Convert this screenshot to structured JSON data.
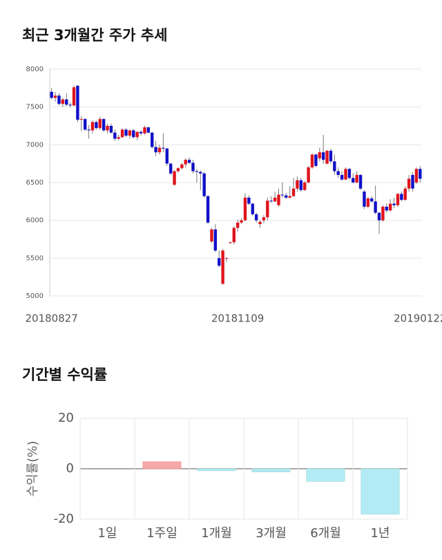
{
  "chart_data": [
    {
      "type": "candlestick",
      "title": "최근 3개월간 주가 추세",
      "up_color": "#e0141c",
      "down_color": "#1010c8",
      "ylim": [
        5000,
        8000
      ],
      "yticks": [
        5000,
        5500,
        6000,
        6500,
        7000,
        7500,
        8000
      ],
      "grid": true,
      "categories": [
        "20180827",
        null,
        null,
        null,
        null,
        null,
        null,
        null,
        null,
        null,
        null,
        null,
        null,
        null,
        null,
        null,
        null,
        null,
        null,
        null,
        null,
        null,
        null,
        null,
        null,
        null,
        null,
        null,
        null,
        null,
        null,
        null,
        null,
        null,
        null,
        null,
        null,
        null,
        null,
        null,
        null,
        null,
        null,
        null,
        null,
        null,
        null,
        null,
        null,
        null,
        "20181109",
        null,
        null,
        null,
        null,
        null,
        null,
        null,
        null,
        null,
        null,
        null,
        null,
        null,
        null,
        null,
        null,
        null,
        null,
        null,
        null,
        null,
        null,
        null,
        null,
        null,
        null,
        null,
        null,
        null,
        null,
        null,
        null,
        null,
        null,
        null,
        null,
        null,
        null,
        null,
        null,
        null,
        null,
        null,
        null,
        null,
        null,
        null,
        null,
        "20190122"
      ],
      "ohlc": [
        [
          7700,
          7750,
          7600,
          7620
        ],
        [
          7620,
          7700,
          7570,
          7650
        ],
        [
          7650,
          7680,
          7520,
          7540
        ],
        [
          7540,
          7620,
          7500,
          7600
        ],
        [
          7600,
          7680,
          7510,
          7530
        ],
        [
          7530,
          7560,
          7490,
          7520
        ],
        [
          7520,
          7780,
          7510,
          7760
        ],
        [
          7780,
          7790,
          7300,
          7330
        ],
        [
          7330,
          7380,
          7180,
          7340
        ],
        [
          7340,
          7350,
          7180,
          7200
        ],
        [
          7200,
          7260,
          7080,
          7190
        ],
        [
          7190,
          7320,
          7150,
          7300
        ],
        [
          7300,
          7320,
          7200,
          7220
        ],
        [
          7220,
          7370,
          7200,
          7340
        ],
        [
          7340,
          7350,
          7170,
          7190
        ],
        [
          7190,
          7280,
          7150,
          7250
        ],
        [
          7250,
          7280,
          7150,
          7160
        ],
        [
          7160,
          7200,
          7050,
          7080
        ],
        [
          7080,
          7130,
          7060,
          7100
        ],
        [
          7100,
          7220,
          7090,
          7200
        ],
        [
          7200,
          7220,
          7100,
          7120
        ],
        [
          7120,
          7200,
          7080,
          7190
        ],
        [
          7190,
          7210,
          7080,
          7100
        ],
        [
          7100,
          7180,
          7060,
          7170
        ],
        [
          7170,
          7190,
          7120,
          7150
        ],
        [
          7150,
          7250,
          7130,
          7230
        ],
        [
          7230,
          7240,
          7150,
          7160
        ],
        [
          7160,
          7170,
          6950,
          6970
        ],
        [
          6970,
          7050,
          6850,
          6900
        ],
        [
          6900,
          7000,
          6870,
          6960
        ],
        [
          6960,
          7150,
          6900,
          6950
        ],
        [
          6950,
          6960,
          6720,
          6750
        ],
        [
          6750,
          6760,
          6600,
          6620
        ],
        [
          6470,
          6660,
          6460,
          6650
        ],
        [
          6650,
          6700,
          6630,
          6690
        ],
        [
          6690,
          6760,
          6670,
          6740
        ],
        [
          6740,
          6820,
          6700,
          6800
        ],
        [
          6800,
          6830,
          6750,
          6760
        ],
        [
          6760,
          6800,
          6620,
          6650
        ],
        [
          6650,
          6680,
          6500,
          6640
        ],
        [
          6640,
          6660,
          6400,
          6620
        ],
        [
          6620,
          6640,
          6300,
          6320
        ],
        [
          6320,
          6330,
          5950,
          5970
        ],
        [
          5720,
          5900,
          5700,
          5880
        ],
        [
          5880,
          5950,
          5580,
          5600
        ],
        [
          5500,
          5600,
          5380,
          5400
        ],
        [
          5160,
          5620,
          5150,
          5600
        ],
        [
          5500,
          5510,
          5450,
          5500
        ],
        [
          5700,
          5720,
          5690,
          5710
        ],
        [
          5710,
          5920,
          5680,
          5900
        ],
        [
          5900,
          6010,
          5850,
          5970
        ],
        [
          5970,
          6030,
          5950,
          6000
        ],
        [
          6000,
          6360,
          5990,
          6300
        ],
        [
          6300,
          6330,
          6200,
          6220
        ],
        [
          6220,
          6230,
          6060,
          6080
        ],
        [
          6080,
          6100,
          5970,
          6000
        ],
        [
          5950,
          6000,
          5900,
          5980
        ],
        [
          6000,
          6070,
          5960,
          6040
        ],
        [
          6040,
          6300,
          6000,
          6260
        ],
        [
          6260,
          6320,
          6230,
          6250
        ],
        [
          6250,
          6380,
          6240,
          6300
        ],
        [
          6200,
          6420,
          6180,
          6340
        ],
        [
          6340,
          6500,
          6300,
          6330
        ],
        [
          6330,
          6360,
          6280,
          6300
        ],
        [
          6300,
          6450,
          6290,
          6320
        ],
        [
          6320,
          6560,
          6310,
          6420
        ],
        [
          6420,
          6580,
          6380,
          6530
        ],
        [
          6530,
          6560,
          6380,
          6400
        ],
        [
          6400,
          6520,
          6390,
          6500
        ],
        [
          6500,
          6720,
          6490,
          6700
        ],
        [
          6700,
          6880,
          6680,
          6870
        ],
        [
          6870,
          6880,
          6700,
          6720
        ],
        [
          6820,
          6960,
          6780,
          6900
        ],
        [
          6900,
          7130,
          6750,
          6800
        ],
        [
          6750,
          6930,
          6740,
          6920
        ],
        [
          6920,
          6950,
          6750,
          6780
        ],
        [
          6780,
          6870,
          6600,
          6650
        ],
        [
          6650,
          6700,
          6560,
          6600
        ],
        [
          6600,
          6650,
          6520,
          6540
        ],
        [
          6540,
          6700,
          6530,
          6680
        ],
        [
          6680,
          6690,
          6540,
          6560
        ],
        [
          6560,
          6620,
          6490,
          6500
        ],
        [
          6500,
          6650,
          6490,
          6600
        ],
        [
          6600,
          6610,
          6400,
          6420
        ],
        [
          6380,
          6400,
          6150,
          6180
        ],
        [
          6180,
          6310,
          6160,
          6290
        ],
        [
          6290,
          6320,
          6230,
          6250
        ],
        [
          6250,
          6460,
          6080,
          6100
        ],
        [
          6100,
          6110,
          5820,
          6000
        ],
        [
          6000,
          6200,
          5980,
          6180
        ],
        [
          6180,
          6220,
          6100,
          6130
        ],
        [
          6130,
          6280,
          6120,
          6220
        ],
        [
          6220,
          6300,
          6160,
          6200
        ],
        [
          6200,
          6360,
          6180,
          6350
        ],
        [
          6350,
          6380,
          6250,
          6270
        ],
        [
          6270,
          6450,
          6260,
          6420
        ],
        [
          6420,
          6600,
          6380,
          6550
        ],
        [
          6600,
          6640,
          6380,
          6420
        ],
        [
          6500,
          6700,
          6480,
          6680
        ],
        [
          6680,
          6720,
          6500,
          6550
        ]
      ]
    },
    {
      "type": "bar",
      "title": "기간별 수익률",
      "y_label": "수익률(%)",
      "categories": [
        "1일",
        "1주일",
        "1개월",
        "3개월",
        "6개월",
        "1년"
      ],
      "values": [
        0,
        2.8,
        -0.8,
        -1.3,
        -5,
        -18
      ],
      "positive_color": "#f7a8aa",
      "negative_color": "#b3ebf4",
      "ylim": [
        -20,
        20
      ],
      "yticks": [
        -20,
        0,
        20
      ],
      "grid": true
    }
  ]
}
